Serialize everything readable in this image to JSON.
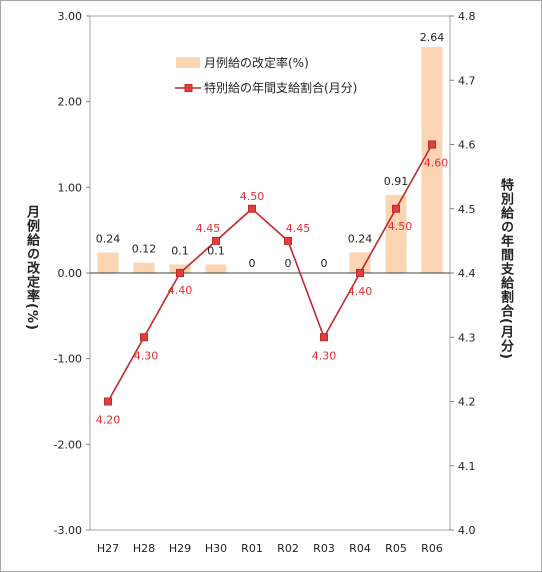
{
  "chart_data": {
    "type": "bar+line",
    "categories": [
      "H27",
      "H28",
      "H29",
      "H30",
      "R01",
      "R02",
      "R03",
      "R04",
      "R05",
      "R06"
    ],
    "series": [
      {
        "name": "月例給の改定率(%)",
        "type": "bar",
        "axis": "left",
        "values": [
          0.24,
          0.12,
          0.1,
          0.1,
          0,
          0,
          0,
          0.24,
          0.91,
          2.64
        ],
        "labels": [
          "0.24",
          "0.12",
          "0.1",
          "0.1",
          "0",
          "0",
          "0",
          "0.24",
          "0.91",
          "2.64"
        ]
      },
      {
        "name": "特別給の年間支給割合(月分)",
        "type": "line",
        "axis": "right",
        "values": [
          4.2,
          4.3,
          4.4,
          4.45,
          4.5,
          4.45,
          4.3,
          4.4,
          4.5,
          4.6
        ],
        "labels": [
          "4.20",
          "4.30",
          "4.40",
          "4.45",
          "4.50",
          "4.45",
          "4.30",
          "4.40",
          "4.50",
          "4.60"
        ]
      }
    ],
    "y_left": {
      "label": "月例給の改定率(%)",
      "ylim": [
        -3.0,
        3.0
      ],
      "ticks": [
        "3.00",
        "2.00",
        "1.00",
        "0.00",
        "-1.00",
        "-2.00",
        "-3.00"
      ]
    },
    "y_right": {
      "label": "特別給の年間支給割合(月分)",
      "ylim": [
        4.0,
        4.8
      ],
      "ticks": [
        "4.8",
        "4.7",
        "4.6",
        "4.5",
        "4.4",
        "4.3",
        "4.2",
        "4.1",
        "4.0"
      ]
    },
    "legend_position": "top-center",
    "grid": false,
    "colors": {
      "bar": "#fcd5b4",
      "line": "#c0282d",
      "marker": "#e0403a",
      "line_label": "#e03030"
    }
  }
}
